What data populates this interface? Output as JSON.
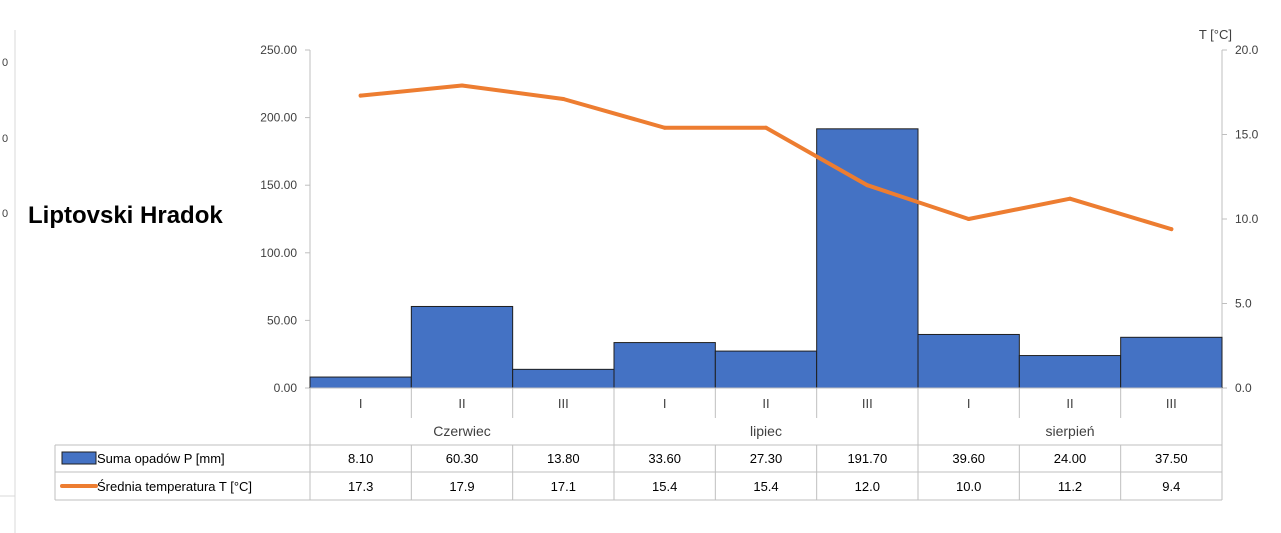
{
  "chart_data": {
    "type": "bar",
    "title": "Liptovski Hradok",
    "left_axis": {
      "ylim": [
        0,
        250
      ],
      "ticks": [
        "0.00",
        "50.00",
        "100.00",
        "150.00",
        "200.00",
        "250.00"
      ]
    },
    "right_axis": {
      "label": "T [°C]",
      "ylim": [
        0,
        20
      ],
      "ticks": [
        "0.0",
        "5.0",
        "10.0",
        "15.0",
        "20.0"
      ]
    },
    "categories": [
      "I",
      "II",
      "III",
      "I",
      "II",
      "III",
      "I",
      "II",
      "III"
    ],
    "groups": [
      {
        "label": "Czerwiec",
        "span": 3
      },
      {
        "label": "lipiec",
        "span": 3
      },
      {
        "label": "sierpień",
        "span": 3
      }
    ],
    "series": [
      {
        "name": "Suma opadów P [mm]",
        "type": "bar",
        "axis": "left",
        "color": "#4472C4",
        "values": [
          8.1,
          60.3,
          13.8,
          33.6,
          27.3,
          191.7,
          39.6,
          24.0,
          37.5
        ],
        "labels": [
          "8.10",
          "60.30",
          "13.80",
          "33.60",
          "27.30",
          "191.70",
          "39.60",
          "24.00",
          "37.50"
        ]
      },
      {
        "name": "Średnia  temperatura T [°C]",
        "type": "line",
        "axis": "right",
        "color": "#ED7D31",
        "values": [
          17.3,
          17.9,
          17.1,
          15.4,
          15.4,
          12.0,
          10.0,
          11.2,
          9.4
        ],
        "labels": [
          "17.3",
          "17.9",
          "17.1",
          "15.4",
          "15.4",
          "12.0",
          "10.0",
          "11.2",
          "9.4"
        ]
      }
    ],
    "grid": false,
    "legend": "data-table"
  },
  "edge_ticks": [
    "0",
    "0",
    "0"
  ]
}
